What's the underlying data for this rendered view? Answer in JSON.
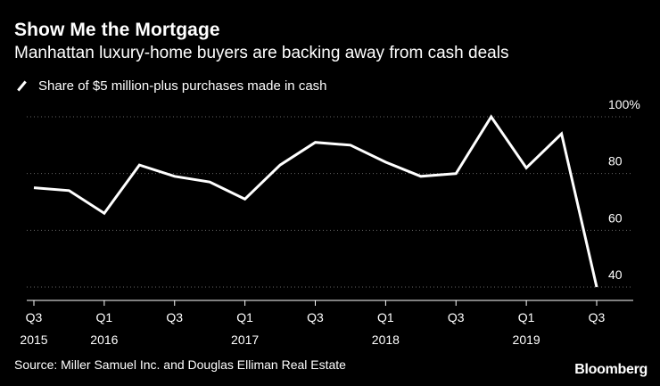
{
  "header": {
    "title": "Show Me the Mortgage",
    "subtitle": "Manhattan luxury-home buyers are backing away from cash deals"
  },
  "legend": {
    "label": "Share of $5 million-plus purchases made in cash"
  },
  "footer": {
    "source": "Source: Miller Samuel Inc. and Douglas Elliman Real Estate",
    "brand": "Bloomberg"
  },
  "colors": {
    "background": "#000000",
    "line": "#ffffff",
    "grid": "#666666"
  },
  "chart_data": {
    "type": "line",
    "title": "Show Me the Mortgage",
    "subtitle": "Manhattan luxury-home buyers are backing away from cash deals",
    "xlabel": "",
    "ylabel": "",
    "ylim": [
      40,
      100
    ],
    "yticks": [
      40,
      60,
      80,
      100
    ],
    "ytick_labels": [
      "40",
      "60",
      "80",
      "100%"
    ],
    "grid": "horizontal dotted",
    "categories": [
      "Q3 2015",
      "Q4 2015",
      "Q1 2016",
      "Q2 2016",
      "Q3 2016",
      "Q4 2016",
      "Q1 2017",
      "Q2 2017",
      "Q3 2017",
      "Q4 2017",
      "Q1 2018",
      "Q2 2018",
      "Q3 2018",
      "Q4 2018",
      "Q1 2019",
      "Q2 2019",
      "Q3 2019"
    ],
    "xtick_labels": [
      {
        "index": 0,
        "quarter": "Q3",
        "year": "2015"
      },
      {
        "index": 2,
        "quarter": "Q1",
        "year": "2016"
      },
      {
        "index": 4,
        "quarter": "Q3",
        "year": ""
      },
      {
        "index": 6,
        "quarter": "Q1",
        "year": "2017"
      },
      {
        "index": 8,
        "quarter": "Q3",
        "year": ""
      },
      {
        "index": 10,
        "quarter": "Q1",
        "year": "2018"
      },
      {
        "index": 12,
        "quarter": "Q3",
        "year": ""
      },
      {
        "index": 14,
        "quarter": "Q1",
        "year": "2019"
      },
      {
        "index": 16,
        "quarter": "Q3",
        "year": ""
      }
    ],
    "series": [
      {
        "name": "Share of $5 million-plus purchases made in cash",
        "values": [
          75,
          74,
          66,
          83,
          79,
          77,
          71,
          83,
          91,
          90,
          84,
          79,
          80,
          100,
          82,
          94,
          40
        ]
      }
    ]
  }
}
